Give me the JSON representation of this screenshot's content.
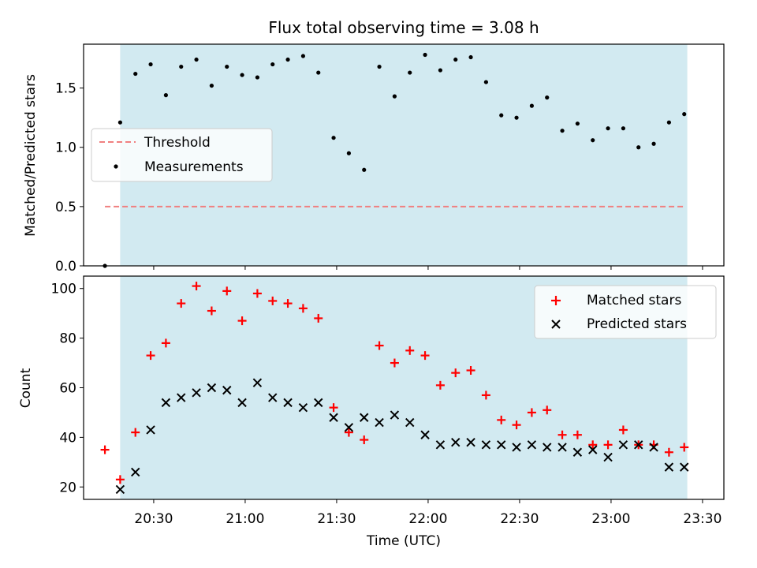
{
  "chart_data": [
    {
      "type": "scatter",
      "title": "Flux total observing time = 3.08 h",
      "xlabel": "",
      "ylabel": "Matched/Predicted stars",
      "ylim": [
        0,
        1.87
      ],
      "xlim": [
        "20:07",
        "23:37"
      ],
      "yticks": [
        "0.0",
        "0.5",
        "1.0",
        "1.5"
      ],
      "shaded_interval": [
        "20:19",
        "23:25"
      ],
      "shade_color": "#add8e6",
      "legend_position": "center-left",
      "series": [
        {
          "name": "Measurements",
          "marker": "dot",
          "color": "#000000",
          "x": [
            "20:14",
            "20:19",
            "20:24",
            "20:29",
            "20:34",
            "20:39",
            "20:44",
            "20:49",
            "20:54",
            "20:59",
            "21:04",
            "21:09",
            "21:14",
            "21:19",
            "21:24",
            "21:29",
            "21:34",
            "21:39",
            "21:44",
            "21:49",
            "21:54",
            "21:59",
            "22:04",
            "22:09",
            "22:14",
            "22:19",
            "22:24",
            "22:29",
            "22:34",
            "22:39",
            "22:44",
            "22:49",
            "22:54",
            "22:59",
            "23:04",
            "23:09",
            "23:14",
            "23:19",
            "23:24"
          ],
          "y": [
            0.0,
            1.21,
            1.62,
            1.7,
            1.44,
            1.68,
            1.74,
            1.52,
            1.68,
            1.61,
            1.59,
            1.7,
            1.74,
            1.77,
            1.63,
            1.08,
            0.95,
            0.81,
            1.68,
            1.43,
            1.63,
            1.78,
            1.65,
            1.74,
            1.76,
            1.55,
            1.27,
            1.25,
            1.35,
            1.42,
            1.14,
            1.2,
            1.06,
            1.16,
            1.16,
            1.0,
            1.03,
            1.21,
            1.28
          ]
        },
        {
          "name": "Threshold",
          "line_style": "dashed",
          "color": "#f08080",
          "x": [
            "20:14",
            "23:24"
          ],
          "y": [
            0.5,
            0.5
          ]
        }
      ]
    },
    {
      "type": "scatter",
      "title": "",
      "xlabel": "Time (UTC)",
      "ylabel": "Count",
      "ylim": [
        15,
        105
      ],
      "xlim": [
        "20:07",
        "23:37"
      ],
      "yticks": [
        "20",
        "40",
        "60",
        "80",
        "100"
      ],
      "xticks": [
        "20:30",
        "21:00",
        "21:30",
        "22:00",
        "22:30",
        "23:00",
        "23:30"
      ],
      "shaded_interval": [
        "20:19",
        "23:25"
      ],
      "shade_color": "#add8e6",
      "legend_position": "top-right",
      "series": [
        {
          "name": "Matched stars",
          "marker": "plus",
          "color": "#ff0000",
          "x": [
            "20:14",
            "20:19",
            "20:24",
            "20:29",
            "20:34",
            "20:39",
            "20:44",
            "20:49",
            "20:54",
            "20:59",
            "21:04",
            "21:09",
            "21:14",
            "21:19",
            "21:24",
            "21:29",
            "21:34",
            "21:39",
            "21:44",
            "21:49",
            "21:54",
            "21:59",
            "22:04",
            "22:09",
            "22:14",
            "22:19",
            "22:24",
            "22:29",
            "22:34",
            "22:39",
            "22:44",
            "22:49",
            "22:54",
            "22:59",
            "23:04",
            "23:09",
            "23:14",
            "23:19",
            "23:24"
          ],
          "y": [
            35,
            23,
            42,
            73,
            78,
            94,
            101,
            91,
            99,
            87,
            98,
            95,
            94,
            92,
            88,
            52,
            42,
            39,
            77,
            70,
            75,
            73,
            61,
            66,
            67,
            57,
            47,
            45,
            50,
            51,
            41,
            41,
            37,
            37,
            43,
            37,
            37,
            34,
            36
          ]
        },
        {
          "name": "Predicted stars",
          "marker": "x",
          "color": "#000000",
          "x": [
            "20:19",
            "20:24",
            "20:29",
            "20:34",
            "20:39",
            "20:44",
            "20:49",
            "20:54",
            "20:59",
            "21:04",
            "21:09",
            "21:14",
            "21:19",
            "21:24",
            "21:29",
            "21:34",
            "21:39",
            "21:44",
            "21:49",
            "21:54",
            "21:59",
            "22:04",
            "22:09",
            "22:14",
            "22:19",
            "22:24",
            "22:29",
            "22:34",
            "22:39",
            "22:44",
            "22:49",
            "22:54",
            "22:59",
            "23:04",
            "23:09",
            "23:14",
            "23:19",
            "23:24"
          ],
          "y": [
            19,
            26,
            43,
            54,
            56,
            58,
            60,
            59,
            54,
            62,
            56,
            54,
            52,
            54,
            48,
            44,
            48,
            46,
            49,
            46,
            41,
            37,
            38,
            38,
            37,
            37,
            36,
            37,
            36,
            36,
            34,
            35,
            32,
            37,
            37,
            36,
            28,
            28
          ]
        }
      ]
    }
  ]
}
